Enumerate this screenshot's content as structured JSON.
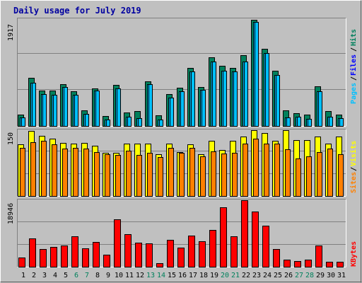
{
  "title": "Daily usage for July 2019",
  "colors": {
    "background": "#c0c0c0",
    "title": "#0000a0",
    "hits": "#00805c",
    "files": "#00c0ff",
    "pages": "#00c0ff",
    "visits": "#ffff00",
    "sites": "#ff8000",
    "kbytes": "#ff0000",
    "weekend": "#00805c",
    "weekday": "#000000"
  },
  "chart_data": [
    {
      "type": "bar",
      "panel": "hits-files-pages",
      "ymax_label": "1917",
      "ylim": [
        0,
        1917
      ],
      "legend": {
        "pages": "Pages",
        "files": "Files",
        "hits": "Hits"
      },
      "categories": [
        "1",
        "2",
        "3",
        "4",
        "5",
        "6",
        "7",
        "8",
        "9",
        "10",
        "11",
        "12",
        "13",
        "14",
        "15",
        "16",
        "17",
        "18",
        "19",
        "20",
        "21",
        "22",
        "23",
        "24",
        "25",
        "26",
        "27",
        "28",
        "29",
        "30",
        "31"
      ],
      "series": [
        {
          "name": "Hits",
          "values": [
            210,
            875,
            640,
            640,
            750,
            630,
            280,
            680,
            180,
            740,
            240,
            270,
            800,
            190,
            580,
            690,
            1050,
            700,
            1240,
            1090,
            1050,
            1280,
            1917,
            1390,
            1000,
            280,
            230,
            210,
            720,
            270,
            210
          ]
        },
        {
          "name": "Files",
          "values": [
            150,
            780,
            580,
            560,
            700,
            560,
            220,
            640,
            120,
            680,
            160,
            140,
            750,
            110,
            510,
            630,
            980,
            650,
            1160,
            1000,
            980,
            1160,
            1880,
            1320,
            920,
            150,
            160,
            130,
            620,
            160,
            140
          ]
        },
        {
          "name": "Pages",
          "values": [
            150,
            780,
            580,
            560,
            700,
            560,
            220,
            640,
            120,
            680,
            160,
            140,
            750,
            110,
            510,
            630,
            980,
            650,
            1160,
            1000,
            980,
            1160,
            1880,
            1320,
            920,
            150,
            160,
            130,
            620,
            160,
            140
          ]
        }
      ]
    },
    {
      "type": "bar",
      "panel": "visits-sites",
      "ymax_label": "150",
      "ylim": [
        0,
        150
      ],
      "legend": {
        "sites": "Sites",
        "visits": "Visits"
      },
      "categories": [
        "1",
        "2",
        "3",
        "4",
        "5",
        "6",
        "7",
        "8",
        "9",
        "10",
        "11",
        "12",
        "13",
        "14",
        "15",
        "16",
        "17",
        "18",
        "19",
        "20",
        "21",
        "22",
        "23",
        "24",
        "25",
        "26",
        "27",
        "28",
        "29",
        "30",
        "31"
      ],
      "series": [
        {
          "name": "Visits",
          "values": [
            118,
            148,
            137,
            131,
            121,
            120,
            121,
            114,
            99,
            98,
            119,
            119,
            120,
            95,
            120,
            100,
            118,
            95,
            125,
            105,
            125,
            135,
            150,
            144,
            125,
            150,
            128,
            128,
            135,
            120,
            135
          ]
        },
        {
          "name": "Sites",
          "values": [
            110,
            122,
            125,
            118,
            108,
            110,
            108,
            100,
            95,
            94,
            104,
            94,
            98,
            88,
            110,
            98,
            110,
            90,
            102,
            96,
            98,
            120,
            130,
            120,
            120,
            106,
            86,
            90,
            100,
            108,
            95
          ]
        }
      ]
    },
    {
      "type": "bar",
      "panel": "kbytes",
      "ymax_label": "18946",
      "ylim": [
        0,
        18946
      ],
      "legend": {
        "kbytes": "KBytes"
      },
      "categories": [
        "1",
        "2",
        "3",
        "4",
        "5",
        "6",
        "7",
        "8",
        "9",
        "10",
        "11",
        "12",
        "13",
        "14",
        "15",
        "16",
        "17",
        "18",
        "19",
        "20",
        "21",
        "22",
        "23",
        "24",
        "25",
        "26",
        "27",
        "28",
        "29",
        "30",
        "31"
      ],
      "series": [
        {
          "name": "KBytes",
          "values": [
            2700,
            8000,
            5000,
            5600,
            6000,
            8600,
            5300,
            7000,
            3500,
            13500,
            9200,
            6800,
            6700,
            1100,
            7700,
            5400,
            8900,
            7300,
            10400,
            17000,
            8600,
            19000,
            15800,
            11600,
            5000,
            2000,
            1700,
            2000,
            6000,
            1400,
            1400
          ]
        }
      ]
    }
  ],
  "x_labels": [
    "1",
    "2",
    "3",
    "4",
    "5",
    "6",
    "7",
    "8",
    "9",
    "10",
    "11",
    "12",
    "13",
    "14",
    "15",
    "16",
    "17",
    "18",
    "19",
    "20",
    "21",
    "22",
    "23",
    "24",
    "25",
    "26",
    "27",
    "28",
    "29",
    "30",
    "31"
  ],
  "weekend_days": [
    "6",
    "7",
    "13",
    "14",
    "20",
    "21",
    "27",
    "28"
  ]
}
